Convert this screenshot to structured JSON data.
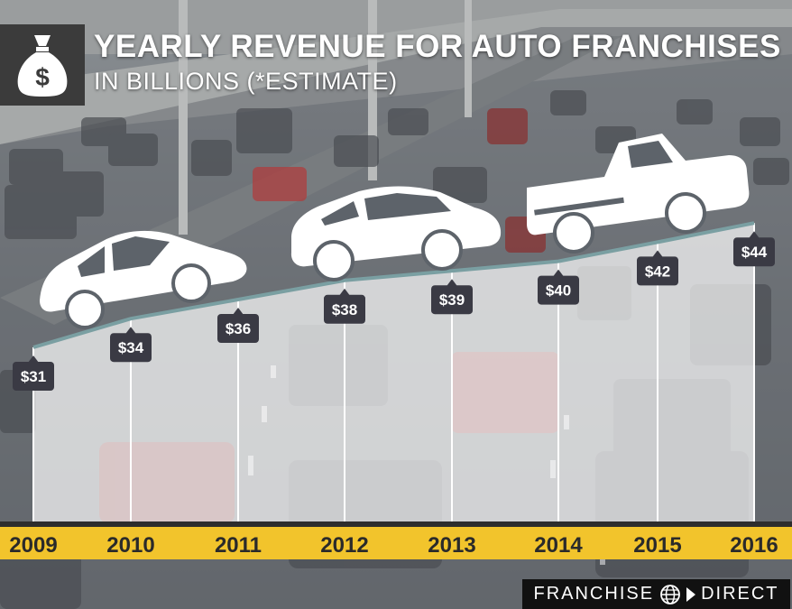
{
  "header": {
    "title": "YEARLY REVENUE FOR AUTO FRANCHISES",
    "subtitle": "IN BILLIONS (*ESTIMATE)",
    "icon": "money-bag-icon"
  },
  "brand": {
    "left": "FRANCHISE",
    "right": "DIRECT",
    "icon": "globe-icon"
  },
  "colors": {
    "axis_band": "#f2c42c",
    "label_bg": "#3a3a44",
    "trend_line": "#7a9fa2",
    "area_fill": "#ffffff",
    "header_box": "#3b3b3b"
  },
  "chart_data": {
    "type": "area",
    "title": "YEARLY REVENUE FOR AUTO FRANCHISES",
    "subtitle": "IN BILLIONS (*ESTIMATE)",
    "categories": [
      "2009",
      "2010",
      "2011",
      "2012",
      "2013",
      "2014",
      "2015",
      "2016"
    ],
    "values": [
      31,
      34,
      36,
      38,
      39,
      40,
      42,
      44
    ],
    "value_labels": [
      "$31",
      "$34",
      "$36",
      "$38",
      "$39",
      "$40",
      "$42",
      "$44"
    ],
    "unit": "billions",
    "grid": "vertical lines at each year",
    "legend": "none"
  }
}
